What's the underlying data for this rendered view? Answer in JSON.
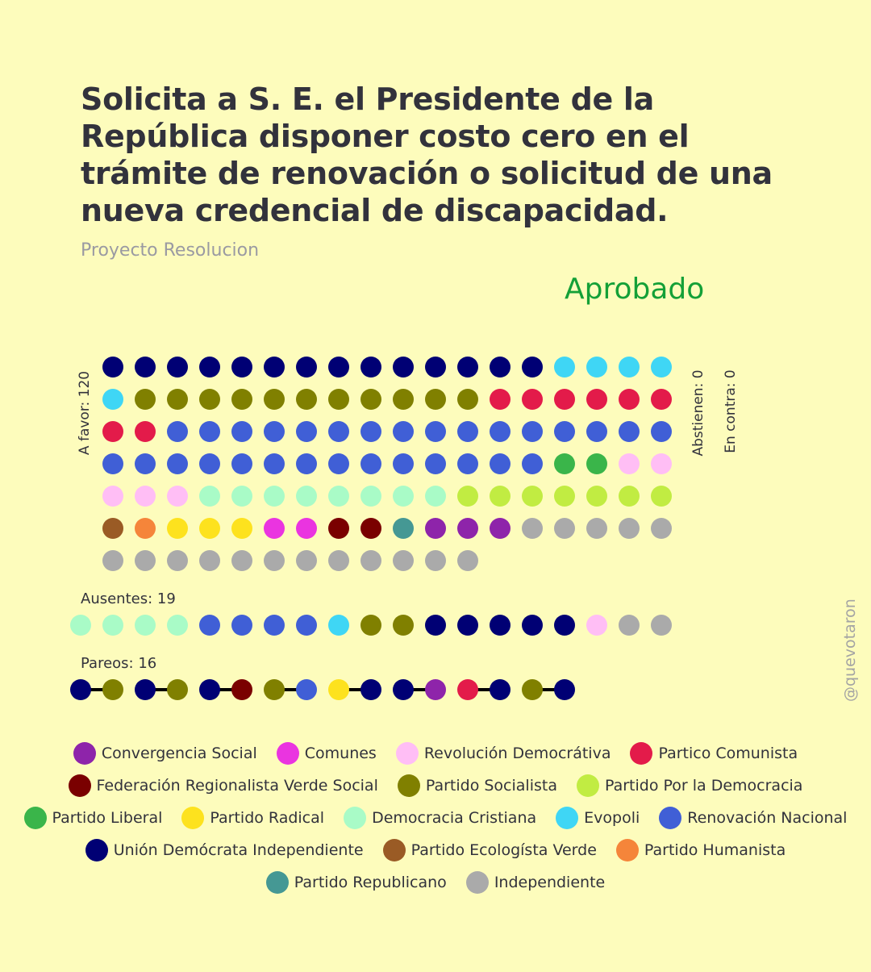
{
  "title": "Solicita a S. E. el Presidente de la República disponer costo cero en el trámite de renovación o solicitud de una nueva credencial de discapacidad.",
  "subtitle": "Proyecto Resolucion",
  "result": "Aprobado",
  "watermark": "@quevotaron",
  "colors": {
    "background": "#fdfcbc",
    "result": "#14a037",
    "text": "#32323c"
  },
  "parties": [
    {
      "id": "CS",
      "name": "Convergencia Social",
      "color": "#8e24aa"
    },
    {
      "id": "COM",
      "name": "Comunes",
      "color": "#ea34e0"
    },
    {
      "id": "RD",
      "name": "Revolución Democrátiva",
      "color": "#ffbef5"
    },
    {
      "id": "PC",
      "name": "Partico Comunista",
      "color": "#e31b4a"
    },
    {
      "id": "FRVS",
      "name": "Federación Regionalista Verde Social",
      "color": "#7a0000"
    },
    {
      "id": "PS",
      "name": "Partido Socialista",
      "color": "#808000"
    },
    {
      "id": "PPD",
      "name": "Partido Por la Democracia",
      "color": "#c1ec42"
    },
    {
      "id": "PL",
      "name": "Partido Liberal",
      "color": "#3ab54a"
    },
    {
      "id": "PR",
      "name": "Partido Radical",
      "color": "#fde21e"
    },
    {
      "id": "DC",
      "name": "Democracia Cristiana",
      "color": "#a9fbc7"
    },
    {
      "id": "EVO",
      "name": "Evopoli",
      "color": "#3fd6f5"
    },
    {
      "id": "RN",
      "name": "Renovación Nacional",
      "color": "#405fd6"
    },
    {
      "id": "UDI",
      "name": "Unión Demócrata Independiente",
      "color": "#000074"
    },
    {
      "id": "PEV",
      "name": "Partido Ecologísta Verde",
      "color": "#9a5b25"
    },
    {
      "id": "PH",
      "name": "Partido Humanista",
      "color": "#f5853a"
    },
    {
      "id": "REP",
      "name": "Partido Republicano",
      "color": "#459894"
    },
    {
      "id": "IND",
      "name": "Independiente",
      "color": "#aaaaaa"
    }
  ],
  "legend_rows": [
    [
      "CS",
      "COM",
      "RD",
      "PC"
    ],
    [
      "FRVS",
      "PS",
      "PPD"
    ],
    [
      "PL",
      "PR",
      "DC",
      "EVO",
      "RN"
    ],
    [
      "UDI",
      "PEV",
      "PH"
    ],
    [
      "REP",
      "IND"
    ]
  ],
  "chart_data": {
    "type": "dot-matrix",
    "a_favor": {
      "label": "A favor: 120",
      "count": 120,
      "per_row": 18,
      "seats": [
        {
          "party": "UDI",
          "count": 14
        },
        {
          "party": "EVO",
          "count": 5
        },
        {
          "party": "PS",
          "count": 11
        },
        {
          "party": "PC",
          "count": 8
        },
        {
          "party": "RN",
          "count": 30
        },
        {
          "party": "PL",
          "count": 2
        },
        {
          "party": "RD",
          "count": 5
        },
        {
          "party": "DC",
          "count": 8
        },
        {
          "party": "PPD",
          "count": 7
        },
        {
          "party": "PEV",
          "count": 1
        },
        {
          "party": "PH",
          "count": 1
        },
        {
          "party": "PR",
          "count": 3
        },
        {
          "party": "COM",
          "count": 2
        },
        {
          "party": "FRVS",
          "count": 2
        },
        {
          "party": "REP",
          "count": 1
        },
        {
          "party": "CS",
          "count": 3
        },
        {
          "party": "IND",
          "count": 17
        }
      ]
    },
    "abstienen": {
      "label": "Abstienen: 0",
      "count": 0
    },
    "en_contra": {
      "label": "En contra: 0",
      "count": 0
    },
    "ausentes": {
      "label": "Ausentes: 19",
      "count": 19,
      "seats": [
        {
          "party": "DC",
          "count": 4
        },
        {
          "party": "RN",
          "count": 4
        },
        {
          "party": "EVO",
          "count": 1
        },
        {
          "party": "PS",
          "count": 2
        },
        {
          "party": "UDI",
          "count": 5
        },
        {
          "party": "RD",
          "count": 1
        },
        {
          "party": "IND",
          "count": 2
        }
      ]
    },
    "pareos": {
      "label": "Pareos: 16",
      "count": 16,
      "pairs": [
        [
          "UDI",
          "PS"
        ],
        [
          "UDI",
          "PS"
        ],
        [
          "UDI",
          "FRVS"
        ],
        [
          "PS",
          "RN"
        ],
        [
          "PR",
          "UDI"
        ],
        [
          "UDI",
          "CS"
        ],
        [
          "PC",
          "UDI"
        ],
        [
          "PS",
          "UDI"
        ]
      ]
    }
  }
}
